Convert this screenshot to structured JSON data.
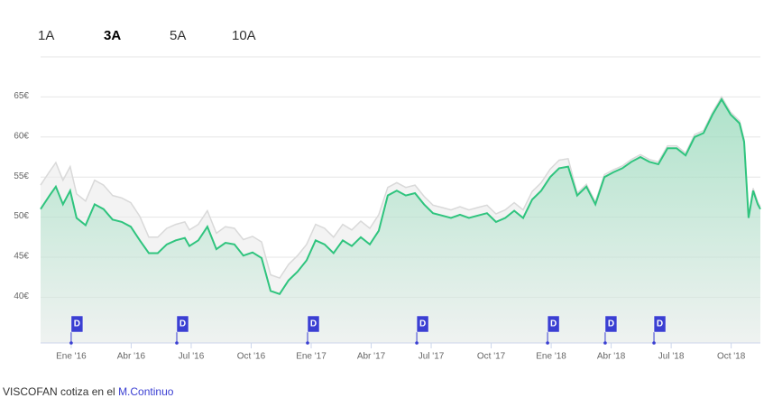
{
  "tabs": [
    "1A",
    "3A",
    "5A",
    "10A"
  ],
  "selected_tab": 1,
  "chart_data": {
    "type": "line",
    "x": [
      -1.53,
      -1.08,
      -0.77,
      -0.41,
      -0.05,
      0.27,
      0.72,
      1.17,
      1.62,
      2.07,
      2.53,
      2.98,
      3.43,
      3.88,
      4.33,
      4.78,
      5.23,
      5.68,
      5.91,
      6.36,
      6.81,
      7.26,
      7.71,
      8.16,
      8.61,
      9.07,
      9.52,
      9.97,
      10.42,
      10.87,
      11.32,
      11.77,
      12.22,
      12.67,
      13.12,
      13.58,
      14.03,
      14.48,
      14.93,
      15.38,
      15.83,
      16.28,
      16.73,
      17.19,
      17.64,
      18.09,
      18.54,
      18.99,
      19.44,
      19.89,
      20.34,
      20.79,
      21.24,
      21.7,
      22.15,
      22.6,
      23.05,
      23.5,
      23.95,
      24.4,
      24.85,
      25.3,
      25.76,
      26.21,
      26.66,
      27.11,
      27.56,
      28.01,
      28.46,
      28.91,
      29.36,
      29.82,
      30.27,
      30.72,
      31.17,
      31.62,
      32.07,
      32.52,
      32.97,
      33.42,
      33.65,
      33.87,
      34.1,
      34.33,
      34.46
    ],
    "series": [
      {
        "color": "#d9d9d9",
        "area_color": "#ebebeb",
        "values": [
          54,
          55.7,
          56.8,
          54.6,
          56.3,
          52.9,
          52,
          54.6,
          54,
          52.7,
          52.4,
          51.8,
          50.1,
          47.5,
          47.5,
          48.6,
          49.1,
          49.4,
          48.4,
          49.1,
          50.8,
          48,
          48.8,
          48.6,
          47.2,
          47.6,
          46.9,
          42.8,
          42.4,
          44.1,
          45.2,
          46.6,
          49.1,
          48.6,
          47.5,
          49.1,
          48.4,
          49.5,
          48.6,
          50.3,
          53.7,
          54.3,
          53.7,
          54,
          52.6,
          51.5,
          51.2,
          50.9,
          51.3,
          50.9,
          51.2,
          51.5,
          50.4,
          50.9,
          51.8,
          50.9,
          53.2,
          54.3,
          56,
          57.1,
          57.3,
          53,
          54.1,
          51.9,
          55.3,
          55.9,
          56.4,
          57.2,
          57.8,
          57.2,
          56.9,
          58.9,
          58.9,
          58,
          60.3,
          60.8,
          63.1,
          65,
          63.1,
          62,
          59.7,
          50.2,
          53.6,
          51.9,
          51.3
        ]
      },
      {
        "color": "#2fc47e",
        "area_color": "#2fc47e",
        "values": [
          51,
          52.7,
          53.8,
          51.6,
          53.3,
          49.9,
          49,
          51.6,
          51,
          49.7,
          49.4,
          48.8,
          47.1,
          45.5,
          45.5,
          46.6,
          47.1,
          47.4,
          46.4,
          47.1,
          48.8,
          46,
          46.8,
          46.6,
          45.2,
          45.6,
          44.9,
          40.8,
          40.4,
          42.1,
          43.2,
          44.6,
          47.1,
          46.6,
          45.5,
          47.1,
          46.4,
          47.5,
          46.6,
          48.3,
          52.7,
          53.3,
          52.7,
          53,
          51.6,
          50.5,
          50.2,
          49.9,
          50.3,
          49.9,
          50.2,
          50.5,
          49.4,
          49.9,
          50.8,
          49.9,
          52.2,
          53.3,
          55,
          56.1,
          56.3,
          52.7,
          53.8,
          51.6,
          55,
          55.6,
          56.1,
          56.9,
          57.5,
          56.9,
          56.6,
          58.6,
          58.6,
          57.7,
          60,
          60.5,
          62.8,
          64.7,
          62.8,
          61.7,
          59.4,
          49.9,
          53.3,
          51.6,
          51
        ]
      }
    ],
    "xlim": [
      -1.53,
      34.46
    ],
    "xticks": [
      {
        "value": 0,
        "label": "Ene '16"
      },
      {
        "value": 3,
        "label": "Abr '16"
      },
      {
        "value": 6,
        "label": "Jul '16"
      },
      {
        "value": 9,
        "label": "Oct '16"
      },
      {
        "value": 12,
        "label": "Ene '17"
      },
      {
        "value": 15,
        "label": "Abr '17"
      },
      {
        "value": 18,
        "label": "Jul '17"
      },
      {
        "value": 21,
        "label": "Oct '17"
      },
      {
        "value": 24,
        "label": "Ene '18"
      },
      {
        "value": 27,
        "label": "Abr '18"
      },
      {
        "value": 30,
        "label": "Jul '18"
      },
      {
        "value": 33,
        "label": "Oct '18"
      }
    ],
    "ylim": [
      34.3,
      70
    ],
    "yticks": [
      {
        "value": 40,
        "label": "40€"
      },
      {
        "value": 45,
        "label": "45€"
      },
      {
        "value": 50,
        "label": "50€"
      },
      {
        "value": 55,
        "label": "55€"
      },
      {
        "value": 60,
        "label": "60€"
      },
      {
        "value": 65,
        "label": "65€"
      }
    ],
    "grid": true,
    "dividends": [
      {
        "x": 0,
        "label": "D"
      },
      {
        "x": 5.28,
        "label": "D"
      },
      {
        "x": 11.82,
        "label": "D"
      },
      {
        "x": 17.28,
        "label": "D"
      },
      {
        "x": 23.82,
        "label": "D"
      },
      {
        "x": 26.7,
        "label": "D"
      },
      {
        "x": 29.14,
        "label": "D"
      }
    ],
    "dividend_color": "#3a3fd2"
  },
  "footer": {
    "text": "VISCOFAN cotiza en el",
    "link": "M.Continuo"
  }
}
